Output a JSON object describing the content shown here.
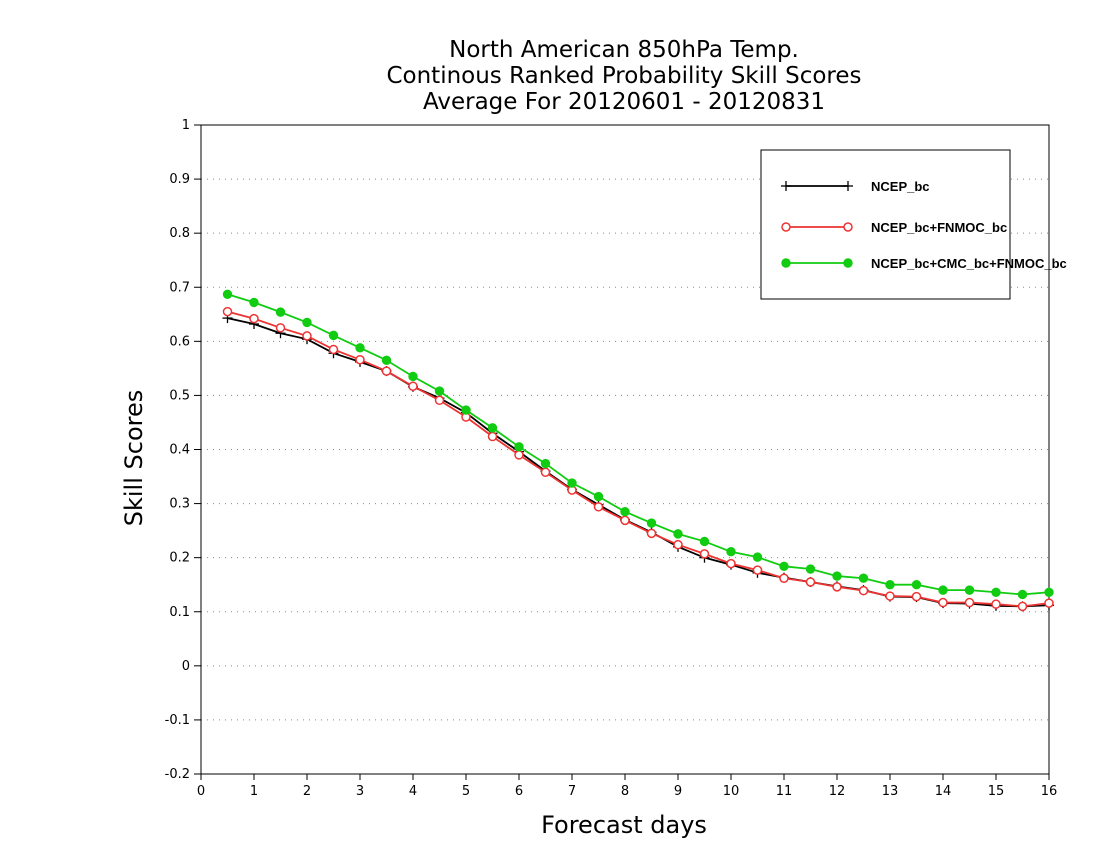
{
  "chart_data": {
    "type": "line",
    "title": [
      "North American 850hPa Temp.",
      "Continous Ranked Probability Skill Scores",
      "Average For 20120601 - 20120831"
    ],
    "xlabel": "Forecast days",
    "ylabel": "Skill Scores",
    "xlim": [
      0,
      16
    ],
    "ylim": [
      -0.2,
      1.0
    ],
    "xticks": [
      0,
      1,
      2,
      3,
      4,
      5,
      6,
      7,
      8,
      9,
      10,
      11,
      12,
      13,
      14,
      15,
      16
    ],
    "yticks": [
      -0.2,
      -0.1,
      0,
      0.1,
      0.2,
      0.3,
      0.4,
      0.5,
      0.6,
      0.7,
      0.8,
      0.9,
      1
    ],
    "ytick_labels": [
      "-0.2",
      "-0.1",
      "0",
      "0.1",
      "0.2",
      "0.3",
      "0.4",
      "0.5",
      "0.6",
      "0.7",
      "0.8",
      "0.9",
      "1"
    ],
    "grid": "horizontal dotted",
    "legend_position": "top-right",
    "x": [
      0.5,
      1,
      1.5,
      2,
      2.5,
      3,
      3.5,
      4,
      4.5,
      5,
      5.5,
      6,
      6.5,
      7,
      7.5,
      8,
      8.5,
      9,
      9.5,
      10,
      10.5,
      11,
      11.5,
      12,
      12.5,
      13,
      13.5,
      14,
      14.5,
      15,
      15.5,
      16
    ],
    "series": [
      {
        "name": "NCEP_bc",
        "color": "#000000",
        "marker": "plus",
        "values": [
          0.643,
          0.632,
          0.615,
          0.604,
          0.578,
          0.562,
          0.545,
          0.516,
          0.495,
          0.468,
          0.43,
          0.396,
          0.36,
          0.326,
          0.298,
          0.27,
          0.247,
          0.22,
          0.2,
          0.187,
          0.172,
          0.163,
          0.155,
          0.147,
          0.14,
          0.128,
          0.127,
          0.116,
          0.115,
          0.111,
          0.11,
          0.112
        ]
      },
      {
        "name": "NCEP_bc+FNMOC_bc",
        "color": "#ee3333",
        "marker": "open-circle",
        "values": [
          0.655,
          0.642,
          0.625,
          0.61,
          0.585,
          0.566,
          0.545,
          0.517,
          0.491,
          0.46,
          0.424,
          0.39,
          0.358,
          0.325,
          0.294,
          0.269,
          0.245,
          0.224,
          0.207,
          0.189,
          0.177,
          0.162,
          0.155,
          0.146,
          0.139,
          0.129,
          0.128,
          0.117,
          0.117,
          0.114,
          0.11,
          0.116
        ]
      },
      {
        "name": "NCEP_bc+CMC_bc+FNMOC_bc",
        "color": "#11cc11",
        "marker": "filled-circle",
        "values": [
          0.687,
          0.672,
          0.654,
          0.635,
          0.611,
          0.588,
          0.565,
          0.535,
          0.508,
          0.473,
          0.44,
          0.405,
          0.374,
          0.338,
          0.313,
          0.285,
          0.264,
          0.244,
          0.23,
          0.211,
          0.201,
          0.184,
          0.179,
          0.166,
          0.162,
          0.15,
          0.15,
          0.14,
          0.14,
          0.136,
          0.132,
          0.136
        ]
      }
    ]
  }
}
